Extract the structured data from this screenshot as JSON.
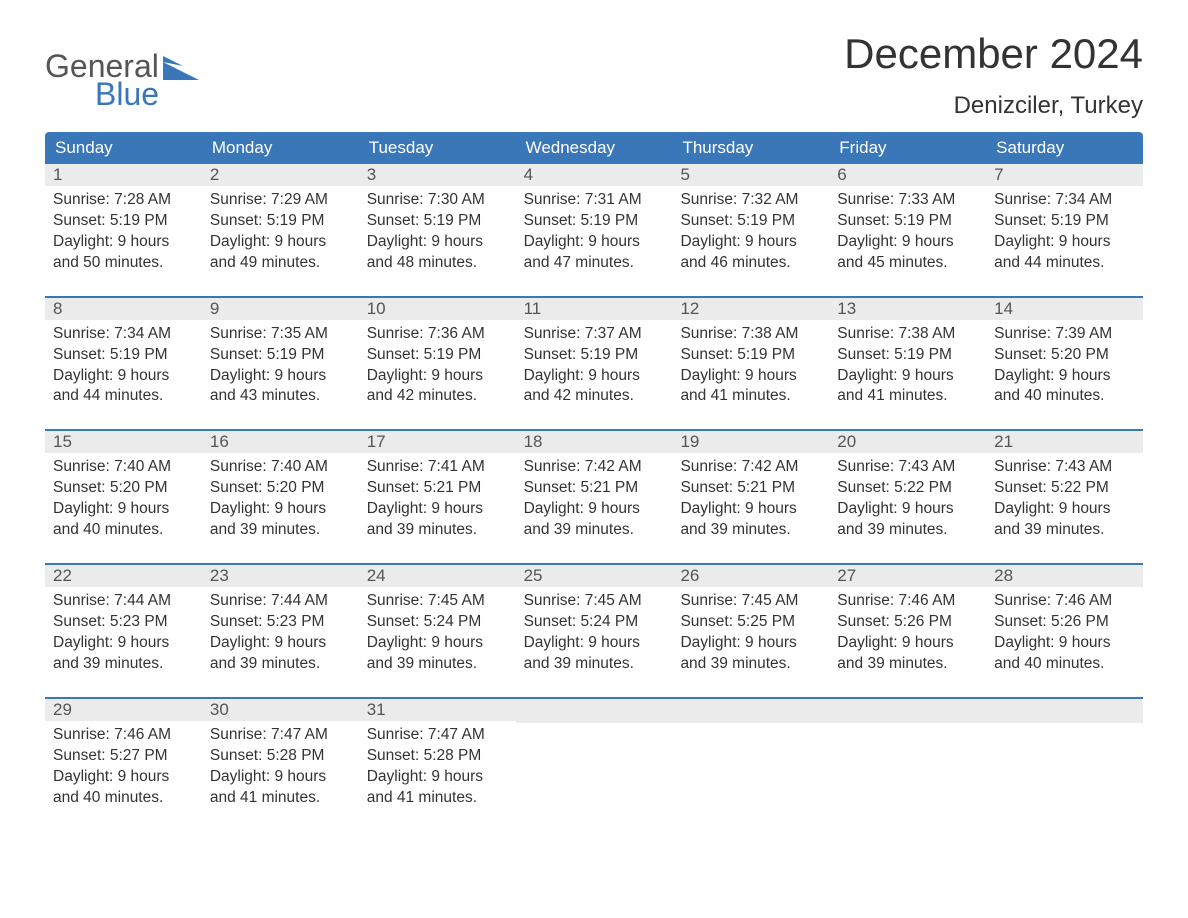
{
  "brand": {
    "top": "General",
    "bottom": "Blue",
    "top_color": "#555555",
    "bottom_color": "#3a77b8"
  },
  "title": "December 2024",
  "location": "Denizciler, Turkey",
  "colors": {
    "header_bg": "#3a77b8",
    "day_number_bg": "#ebebeb",
    "text": "#333333",
    "week_border": "#3a77b8",
    "page_bg": "#ffffff"
  },
  "fonts": {
    "title_size_pt": 32,
    "location_size_pt": 18,
    "weekday_size_pt": 13,
    "body_size_pt": 12
  },
  "weekdays": [
    "Sunday",
    "Monday",
    "Tuesday",
    "Wednesday",
    "Thursday",
    "Friday",
    "Saturday"
  ],
  "weeks": [
    [
      {
        "n": "1",
        "sunrise": "Sunrise: 7:28 AM",
        "sunset": "Sunset: 5:19 PM",
        "d1": "Daylight: 9 hours",
        "d2": "and 50 minutes."
      },
      {
        "n": "2",
        "sunrise": "Sunrise: 7:29 AM",
        "sunset": "Sunset: 5:19 PM",
        "d1": "Daylight: 9 hours",
        "d2": "and 49 minutes."
      },
      {
        "n": "3",
        "sunrise": "Sunrise: 7:30 AM",
        "sunset": "Sunset: 5:19 PM",
        "d1": "Daylight: 9 hours",
        "d2": "and 48 minutes."
      },
      {
        "n": "4",
        "sunrise": "Sunrise: 7:31 AM",
        "sunset": "Sunset: 5:19 PM",
        "d1": "Daylight: 9 hours",
        "d2": "and 47 minutes."
      },
      {
        "n": "5",
        "sunrise": "Sunrise: 7:32 AM",
        "sunset": "Sunset: 5:19 PM",
        "d1": "Daylight: 9 hours",
        "d2": "and 46 minutes."
      },
      {
        "n": "6",
        "sunrise": "Sunrise: 7:33 AM",
        "sunset": "Sunset: 5:19 PM",
        "d1": "Daylight: 9 hours",
        "d2": "and 45 minutes."
      },
      {
        "n": "7",
        "sunrise": "Sunrise: 7:34 AM",
        "sunset": "Sunset: 5:19 PM",
        "d1": "Daylight: 9 hours",
        "d2": "and 44 minutes."
      }
    ],
    [
      {
        "n": "8",
        "sunrise": "Sunrise: 7:34 AM",
        "sunset": "Sunset: 5:19 PM",
        "d1": "Daylight: 9 hours",
        "d2": "and 44 minutes."
      },
      {
        "n": "9",
        "sunrise": "Sunrise: 7:35 AM",
        "sunset": "Sunset: 5:19 PM",
        "d1": "Daylight: 9 hours",
        "d2": "and 43 minutes."
      },
      {
        "n": "10",
        "sunrise": "Sunrise: 7:36 AM",
        "sunset": "Sunset: 5:19 PM",
        "d1": "Daylight: 9 hours",
        "d2": "and 42 minutes."
      },
      {
        "n": "11",
        "sunrise": "Sunrise: 7:37 AM",
        "sunset": "Sunset: 5:19 PM",
        "d1": "Daylight: 9 hours",
        "d2": "and 42 minutes."
      },
      {
        "n": "12",
        "sunrise": "Sunrise: 7:38 AM",
        "sunset": "Sunset: 5:19 PM",
        "d1": "Daylight: 9 hours",
        "d2": "and 41 minutes."
      },
      {
        "n": "13",
        "sunrise": "Sunrise: 7:38 AM",
        "sunset": "Sunset: 5:19 PM",
        "d1": "Daylight: 9 hours",
        "d2": "and 41 minutes."
      },
      {
        "n": "14",
        "sunrise": "Sunrise: 7:39 AM",
        "sunset": "Sunset: 5:20 PM",
        "d1": "Daylight: 9 hours",
        "d2": "and 40 minutes."
      }
    ],
    [
      {
        "n": "15",
        "sunrise": "Sunrise: 7:40 AM",
        "sunset": "Sunset: 5:20 PM",
        "d1": "Daylight: 9 hours",
        "d2": "and 40 minutes."
      },
      {
        "n": "16",
        "sunrise": "Sunrise: 7:40 AM",
        "sunset": "Sunset: 5:20 PM",
        "d1": "Daylight: 9 hours",
        "d2": "and 39 minutes."
      },
      {
        "n": "17",
        "sunrise": "Sunrise: 7:41 AM",
        "sunset": "Sunset: 5:21 PM",
        "d1": "Daylight: 9 hours",
        "d2": "and 39 minutes."
      },
      {
        "n": "18",
        "sunrise": "Sunrise: 7:42 AM",
        "sunset": "Sunset: 5:21 PM",
        "d1": "Daylight: 9 hours",
        "d2": "and 39 minutes."
      },
      {
        "n": "19",
        "sunrise": "Sunrise: 7:42 AM",
        "sunset": "Sunset: 5:21 PM",
        "d1": "Daylight: 9 hours",
        "d2": "and 39 minutes."
      },
      {
        "n": "20",
        "sunrise": "Sunrise: 7:43 AM",
        "sunset": "Sunset: 5:22 PM",
        "d1": "Daylight: 9 hours",
        "d2": "and 39 minutes."
      },
      {
        "n": "21",
        "sunrise": "Sunrise: 7:43 AM",
        "sunset": "Sunset: 5:22 PM",
        "d1": "Daylight: 9 hours",
        "d2": "and 39 minutes."
      }
    ],
    [
      {
        "n": "22",
        "sunrise": "Sunrise: 7:44 AM",
        "sunset": "Sunset: 5:23 PM",
        "d1": "Daylight: 9 hours",
        "d2": "and 39 minutes."
      },
      {
        "n": "23",
        "sunrise": "Sunrise: 7:44 AM",
        "sunset": "Sunset: 5:23 PM",
        "d1": "Daylight: 9 hours",
        "d2": "and 39 minutes."
      },
      {
        "n": "24",
        "sunrise": "Sunrise: 7:45 AM",
        "sunset": "Sunset: 5:24 PM",
        "d1": "Daylight: 9 hours",
        "d2": "and 39 minutes."
      },
      {
        "n": "25",
        "sunrise": "Sunrise: 7:45 AM",
        "sunset": "Sunset: 5:24 PM",
        "d1": "Daylight: 9 hours",
        "d2": "and 39 minutes."
      },
      {
        "n": "26",
        "sunrise": "Sunrise: 7:45 AM",
        "sunset": "Sunset: 5:25 PM",
        "d1": "Daylight: 9 hours",
        "d2": "and 39 minutes."
      },
      {
        "n": "27",
        "sunrise": "Sunrise: 7:46 AM",
        "sunset": "Sunset: 5:26 PM",
        "d1": "Daylight: 9 hours",
        "d2": "and 39 minutes."
      },
      {
        "n": "28",
        "sunrise": "Sunrise: 7:46 AM",
        "sunset": "Sunset: 5:26 PM",
        "d1": "Daylight: 9 hours",
        "d2": "and 40 minutes."
      }
    ],
    [
      {
        "n": "29",
        "sunrise": "Sunrise: 7:46 AM",
        "sunset": "Sunset: 5:27 PM",
        "d1": "Daylight: 9 hours",
        "d2": "and 40 minutes."
      },
      {
        "n": "30",
        "sunrise": "Sunrise: 7:47 AM",
        "sunset": "Sunset: 5:28 PM",
        "d1": "Daylight: 9 hours",
        "d2": "and 41 minutes."
      },
      {
        "n": "31",
        "sunrise": "Sunrise: 7:47 AM",
        "sunset": "Sunset: 5:28 PM",
        "d1": "Daylight: 9 hours",
        "d2": "and 41 minutes."
      },
      null,
      null,
      null,
      null
    ]
  ]
}
